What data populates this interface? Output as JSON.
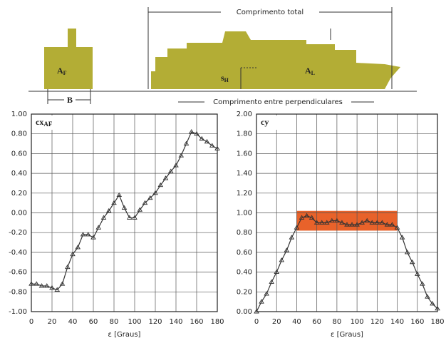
{
  "diagram": {
    "total_length": "Comprimento total",
    "perp_length": "Comprimento entre perpendiculares",
    "front_area": {
      "label": "A",
      "sub": "F"
    },
    "beam": "B",
    "lateral_area": {
      "label": "A",
      "sub": "L"
    },
    "height": {
      "label": "s",
      "sub": "H"
    }
  },
  "chart_data": [
    {
      "type": "line",
      "title": "cx",
      "title_sub": "AF",
      "xlabel": "ε  [Graus]",
      "grid": true,
      "x": [
        0,
        5,
        10,
        15,
        20,
        25,
        30,
        35,
        40,
        45,
        50,
        55,
        60,
        65,
        70,
        75,
        80,
        85,
        90,
        95,
        100,
        105,
        110,
        115,
        120,
        125,
        130,
        135,
        140,
        145,
        150,
        155,
        160,
        165,
        170,
        175,
        180
      ],
      "series": [
        {
          "color": "#333333",
          "values": [
            -0.72,
            -0.72,
            -0.74,
            -0.74,
            -0.76,
            -0.78,
            -0.72,
            -0.55,
            -0.42,
            -0.35,
            -0.22,
            -0.22,
            -0.25,
            -0.15,
            -0.05,
            0.02,
            0.1,
            0.18,
            0.05,
            -0.05,
            -0.05,
            0.03,
            0.1,
            0.15,
            0.2,
            0.28,
            0.35,
            0.42,
            0.48,
            0.58,
            0.7,
            0.82,
            0.8,
            0.75,
            0.72,
            0.68,
            0.65
          ]
        }
      ],
      "xlim": [
        0,
        180
      ],
      "xticks": [
        0,
        20,
        40,
        60,
        80,
        100,
        120,
        140,
        160,
        180
      ],
      "ylim": [
        -1,
        1
      ],
      "yticks": [
        {
          "value": -1,
          "label": "-1.00"
        },
        {
          "value": -0.8,
          "label": "-0.80"
        },
        {
          "value": -0.6,
          "label": "-0.60"
        },
        {
          "value": -0.4,
          "label": "-0.40"
        },
        {
          "value": -0.2,
          "label": "-0.20"
        },
        {
          "value": 0,
          "label": "0.00"
        },
        {
          "value": 0.2,
          "label": "0.20"
        },
        {
          "value": 0.4,
          "label": "0.40"
        },
        {
          "value": 0.6,
          "label": "0.60"
        },
        {
          "value": 0.8,
          "label": "0.80"
        },
        {
          "value": 1,
          "label": "1.00"
        }
      ]
    },
    {
      "type": "line",
      "title": "cy",
      "xlabel": "ε  [Graus]",
      "grid": true,
      "highlight": {
        "x": [
          40,
          140
        ],
        "y": [
          0.82,
          1.02
        ],
        "color": "#e8622a"
      },
      "x": [
        0,
        5,
        10,
        15,
        20,
        25,
        30,
        35,
        40,
        45,
        50,
        55,
        60,
        65,
        70,
        75,
        80,
        85,
        90,
        95,
        100,
        105,
        110,
        115,
        120,
        125,
        130,
        135,
        140,
        145,
        150,
        155,
        160,
        165,
        170,
        175,
        180
      ],
      "series": [
        {
          "color": "#333333",
          "values": [
            0,
            0.1,
            0.18,
            0.3,
            0.4,
            0.52,
            0.62,
            0.75,
            0.85,
            0.95,
            0.97,
            0.95,
            0.9,
            0.9,
            0.9,
            0.92,
            0.92,
            0.9,
            0.88,
            0.88,
            0.88,
            0.9,
            0.92,
            0.9,
            0.9,
            0.9,
            0.88,
            0.88,
            0.85,
            0.75,
            0.6,
            0.5,
            0.38,
            0.28,
            0.15,
            0.08,
            0.03
          ]
        }
      ],
      "xlim": [
        0,
        180
      ],
      "xticks": [
        0,
        20,
        40,
        60,
        80,
        100,
        120,
        140,
        160,
        180
      ],
      "ylim": [
        0,
        2
      ],
      "yticks": [
        {
          "value": 0,
          "label": "0.00"
        },
        {
          "value": 0.2,
          "label": "0.20"
        },
        {
          "value": 0.4,
          "label": "0.40"
        },
        {
          "value": 0.6,
          "label": "0.60"
        },
        {
          "value": 0.8,
          "label": "0.80"
        },
        {
          "value": 1,
          "label": "1.00"
        },
        {
          "value": 1.2,
          "label": "1.20"
        },
        {
          "value": 1.4,
          "label": "1.40"
        },
        {
          "value": 1.6,
          "label": "1.60"
        },
        {
          "value": 1.8,
          "label": "1.80"
        },
        {
          "value": 2,
          "label": "2.00"
        }
      ]
    }
  ]
}
